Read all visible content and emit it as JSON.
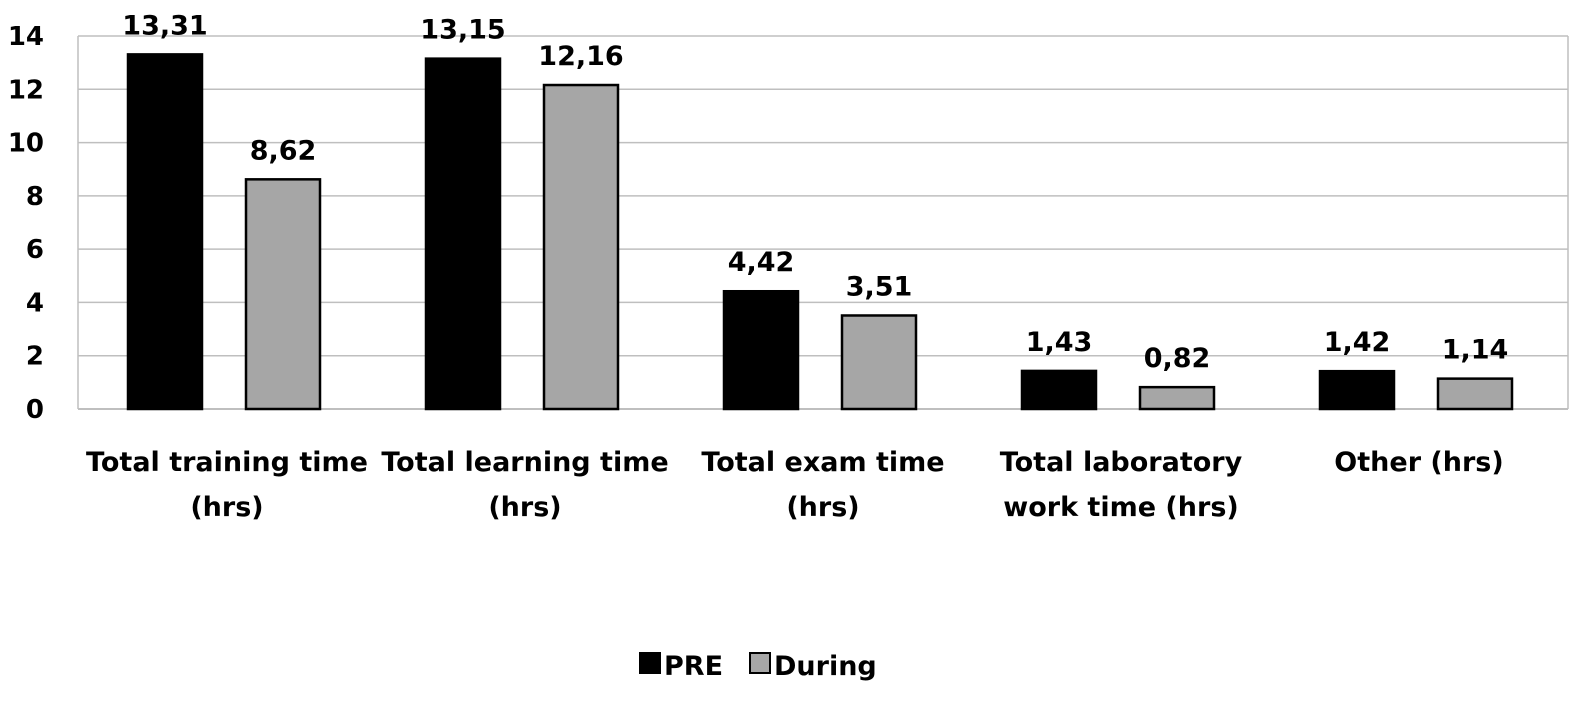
{
  "chart_data": {
    "type": "bar",
    "categories": [
      [
        "Total training time",
        "(hrs)"
      ],
      [
        "Total learning time",
        "(hrs)"
      ],
      [
        "Total exam time",
        "(hrs)"
      ],
      [
        "Total laboratory",
        "work time (hrs)"
      ],
      [
        "Other (hrs)"
      ]
    ],
    "series": [
      {
        "name": "PRE",
        "values": [
          13.31,
          13.15,
          4.42,
          1.43,
          1.42
        ],
        "labels": [
          "13,31",
          "13,15",
          "4,42",
          "1,43",
          "1,42"
        ],
        "color": "#000000"
      },
      {
        "name": "During",
        "values": [
          8.62,
          12.16,
          3.51,
          0.82,
          1.14
        ],
        "labels": [
          "8,62",
          "12,16",
          "3,51",
          "0,82",
          "1,14"
        ],
        "color": "#a6a6a6"
      }
    ],
    "y_ticks": [
      "0",
      "2",
      "4",
      "6",
      "8",
      "10",
      "12",
      "14"
    ],
    "ylim": [
      0,
      14
    ],
    "grid": true,
    "legend_position": "bottom-center"
  }
}
